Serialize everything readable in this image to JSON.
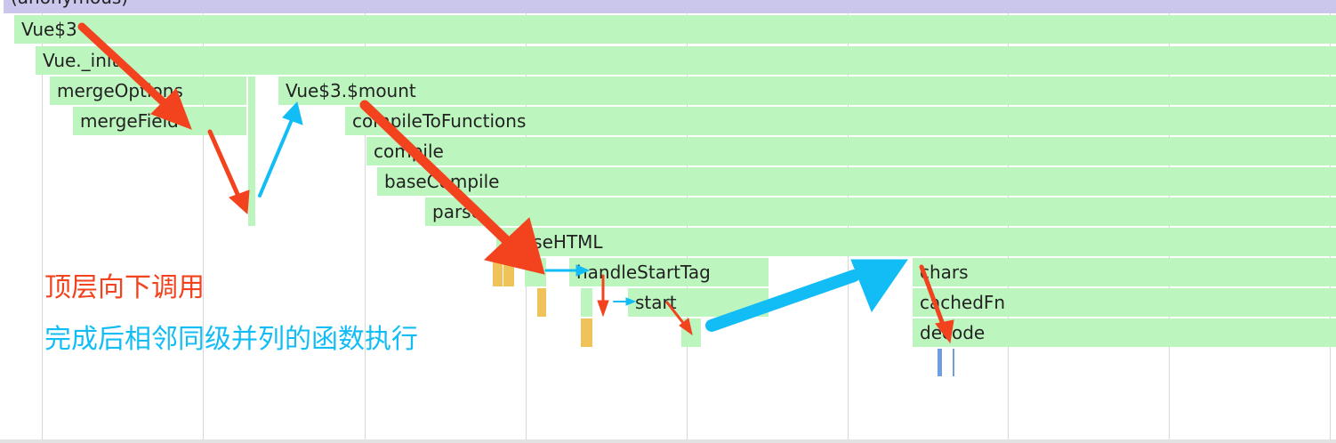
{
  "flame": {
    "anonymous": "(anonymous)",
    "vue3": "Vue$3",
    "vue_init": "Vue._init",
    "mergeOptions": "mergeOptions",
    "mergeField": "mergeField",
    "mount": "Vue$3.$mount",
    "compileToFunctions": "compileToFunctions",
    "compile": "compile",
    "baseCompile": "baseCompile",
    "parse": "parse",
    "parseHTML": "parseHTML",
    "handleStartTag": "handleStartTag",
    "start": "start",
    "chars": "chars",
    "cachedFn": "cachedFn",
    "decode": "decode"
  },
  "annotations": {
    "top_down": "顶层向下调用",
    "siblings": "完成后相邻同级并列的函数执行"
  },
  "colors": {
    "js": "#bdf5bf",
    "root": "#cbc7ec",
    "script": "#f0c25a",
    "gc": "#6f9fe0",
    "red_arrow": "#f2431e",
    "blue_arrow": "#12bdf5"
  }
}
